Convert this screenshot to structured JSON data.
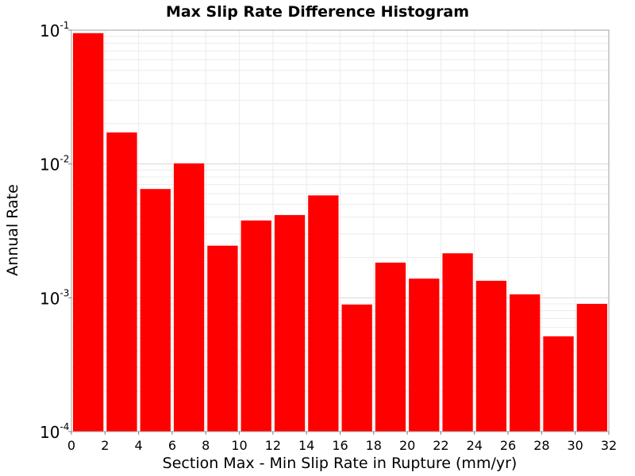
{
  "chart_data": {
    "type": "bar",
    "title": "Max Slip Rate Difference Histogram",
    "xlabel": "Section Max - Min Slip Rate in Rupture (mm/yr)",
    "ylabel": "Annual Rate",
    "xlim": [
      0,
      32
    ],
    "ylim": [
      0.0001,
      0.1
    ],
    "y_scale": "log",
    "bin_width": 2,
    "x_ticks": [
      "0",
      "2",
      "4",
      "6",
      "8",
      "10",
      "12",
      "14",
      "16",
      "18",
      "20",
      "22",
      "24",
      "26",
      "28",
      "30",
      "32"
    ],
    "y_ticks": [
      {
        "base": "10",
        "exp": "-1"
      },
      {
        "base": "10",
        "exp": "-2"
      },
      {
        "base": "10",
        "exp": "-3"
      },
      {
        "base": "10",
        "exp": "-4"
      }
    ],
    "grid": true,
    "bar_color": "#ff0000",
    "series": [
      {
        "bin_centers": [
          1,
          3,
          5,
          7,
          9,
          11,
          13,
          15,
          17,
          19,
          21,
          23,
          25,
          27,
          29,
          31
        ],
        "values": [
          0.095,
          0.0172,
          0.0065,
          0.0101,
          0.00245,
          0.00378,
          0.00415,
          0.00582,
          0.00089,
          0.00183,
          0.00139,
          0.00215,
          0.00134,
          0.00106,
          0.000515,
          0.0009
        ]
      }
    ]
  }
}
